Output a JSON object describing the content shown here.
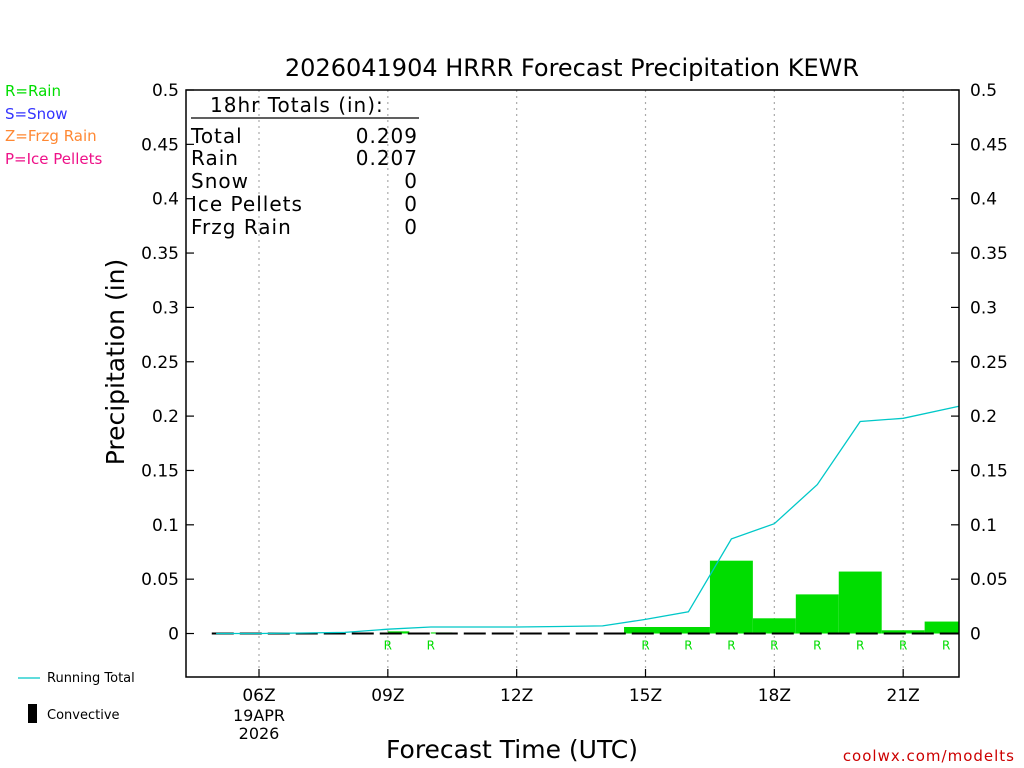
{
  "chart_data": {
    "type": "bar",
    "title": "2026041904 HRRR Forecast Precipitation KEWR",
    "xlabel": "Forecast Time (UTC)",
    "ylabel": "Precipitation (in)",
    "ylim": [
      -0.04,
      0.5
    ],
    "xlim_hours": [
      4.3,
      22.3
    ],
    "y_ticks": [
      "0",
      "0.05",
      "0.1",
      "0.15",
      "0.2",
      "0.25",
      "0.3",
      "0.35",
      "0.4",
      "0.45",
      "0.5"
    ],
    "x_ticks": [
      {
        "hour": 6,
        "label": "06Z",
        "sub1": "19APR",
        "sub2": "2026"
      },
      {
        "hour": 9,
        "label": "09Z"
      },
      {
        "hour": 12,
        "label": "12Z"
      },
      {
        "hour": 15,
        "label": "15Z"
      },
      {
        "hour": 18,
        "label": "18Z"
      },
      {
        "hour": 21,
        "label": "21Z"
      }
    ],
    "grid": "vertical-dotted",
    "precip_bars": [
      {
        "start": 9.0,
        "end": 9.5,
        "value": 0.002
      },
      {
        "start": 10.0,
        "end": 10.5,
        "value": 0.001
      },
      {
        "start": 14.5,
        "end": 16.5,
        "value": 0.006
      },
      {
        "start": 16.5,
        "end": 17.5,
        "value": 0.067
      },
      {
        "start": 17.5,
        "end": 18.5,
        "value": 0.014
      },
      {
        "start": 18.5,
        "end": 19.5,
        "value": 0.036
      },
      {
        "start": 19.5,
        "end": 20.5,
        "value": 0.057
      },
      {
        "start": 20.5,
        "end": 21.5,
        "value": 0.003
      },
      {
        "start": 21.5,
        "end": 22.3,
        "value": 0.011
      }
    ],
    "running_total": {
      "name": "Running Total",
      "x": [
        5,
        6,
        7,
        8,
        9,
        10,
        11,
        12,
        13,
        14,
        15,
        16,
        17,
        18,
        19,
        20,
        21,
        22.3
      ],
      "y": [
        0,
        0,
        0.0005,
        0.001,
        0.004,
        0.006,
        0.006,
        0.006,
        0.0065,
        0.007,
        0.013,
        0.02,
        0.087,
        0.101,
        0.137,
        0.195,
        0.198,
        0.209
      ]
    },
    "convective_x": [
      4.9,
      22.3
    ],
    "precip_type_markers": [
      {
        "hour": 9,
        "label": "R"
      },
      {
        "hour": 10,
        "label": "R"
      },
      {
        "hour": 15,
        "label": "R"
      },
      {
        "hour": 16,
        "label": "R"
      },
      {
        "hour": 17,
        "label": "R"
      },
      {
        "hour": 18,
        "label": "R"
      },
      {
        "hour": 19,
        "label": "R"
      },
      {
        "hour": 20,
        "label": "R"
      },
      {
        "hour": 21,
        "label": "R"
      },
      {
        "hour": 22,
        "label": "R"
      }
    ],
    "colors": {
      "rain": "#00dd00",
      "snow": "#3333ff",
      "frzg": "#ff8833",
      "pellets": "#ee1188",
      "running_total": "#00c8c8",
      "credit": "#cc0000"
    }
  },
  "type_legend": [
    {
      "text": "R=Rain",
      "color": "#00dd00"
    },
    {
      "text": "S=Snow",
      "color": "#3333ff"
    },
    {
      "text": "Z=Frzg Rain",
      "color": "#ff8833"
    },
    {
      "text": "P=Ice Pellets",
      "color": "#ee1188"
    }
  ],
  "totals": {
    "heading": "18hr Totals (in):",
    "rows": [
      {
        "label": "Total",
        "value": "0.209"
      },
      {
        "label": "Rain",
        "value": "0.207"
      },
      {
        "label": "Snow",
        "value": "0"
      },
      {
        "label": "Ice Pellets",
        "value": "0"
      },
      {
        "label": "Frzg Rain",
        "value": "0"
      }
    ]
  },
  "line_legend": {
    "running_total": "Running Total",
    "convective": "Convective"
  },
  "credit": "coolwx.com/modelts"
}
